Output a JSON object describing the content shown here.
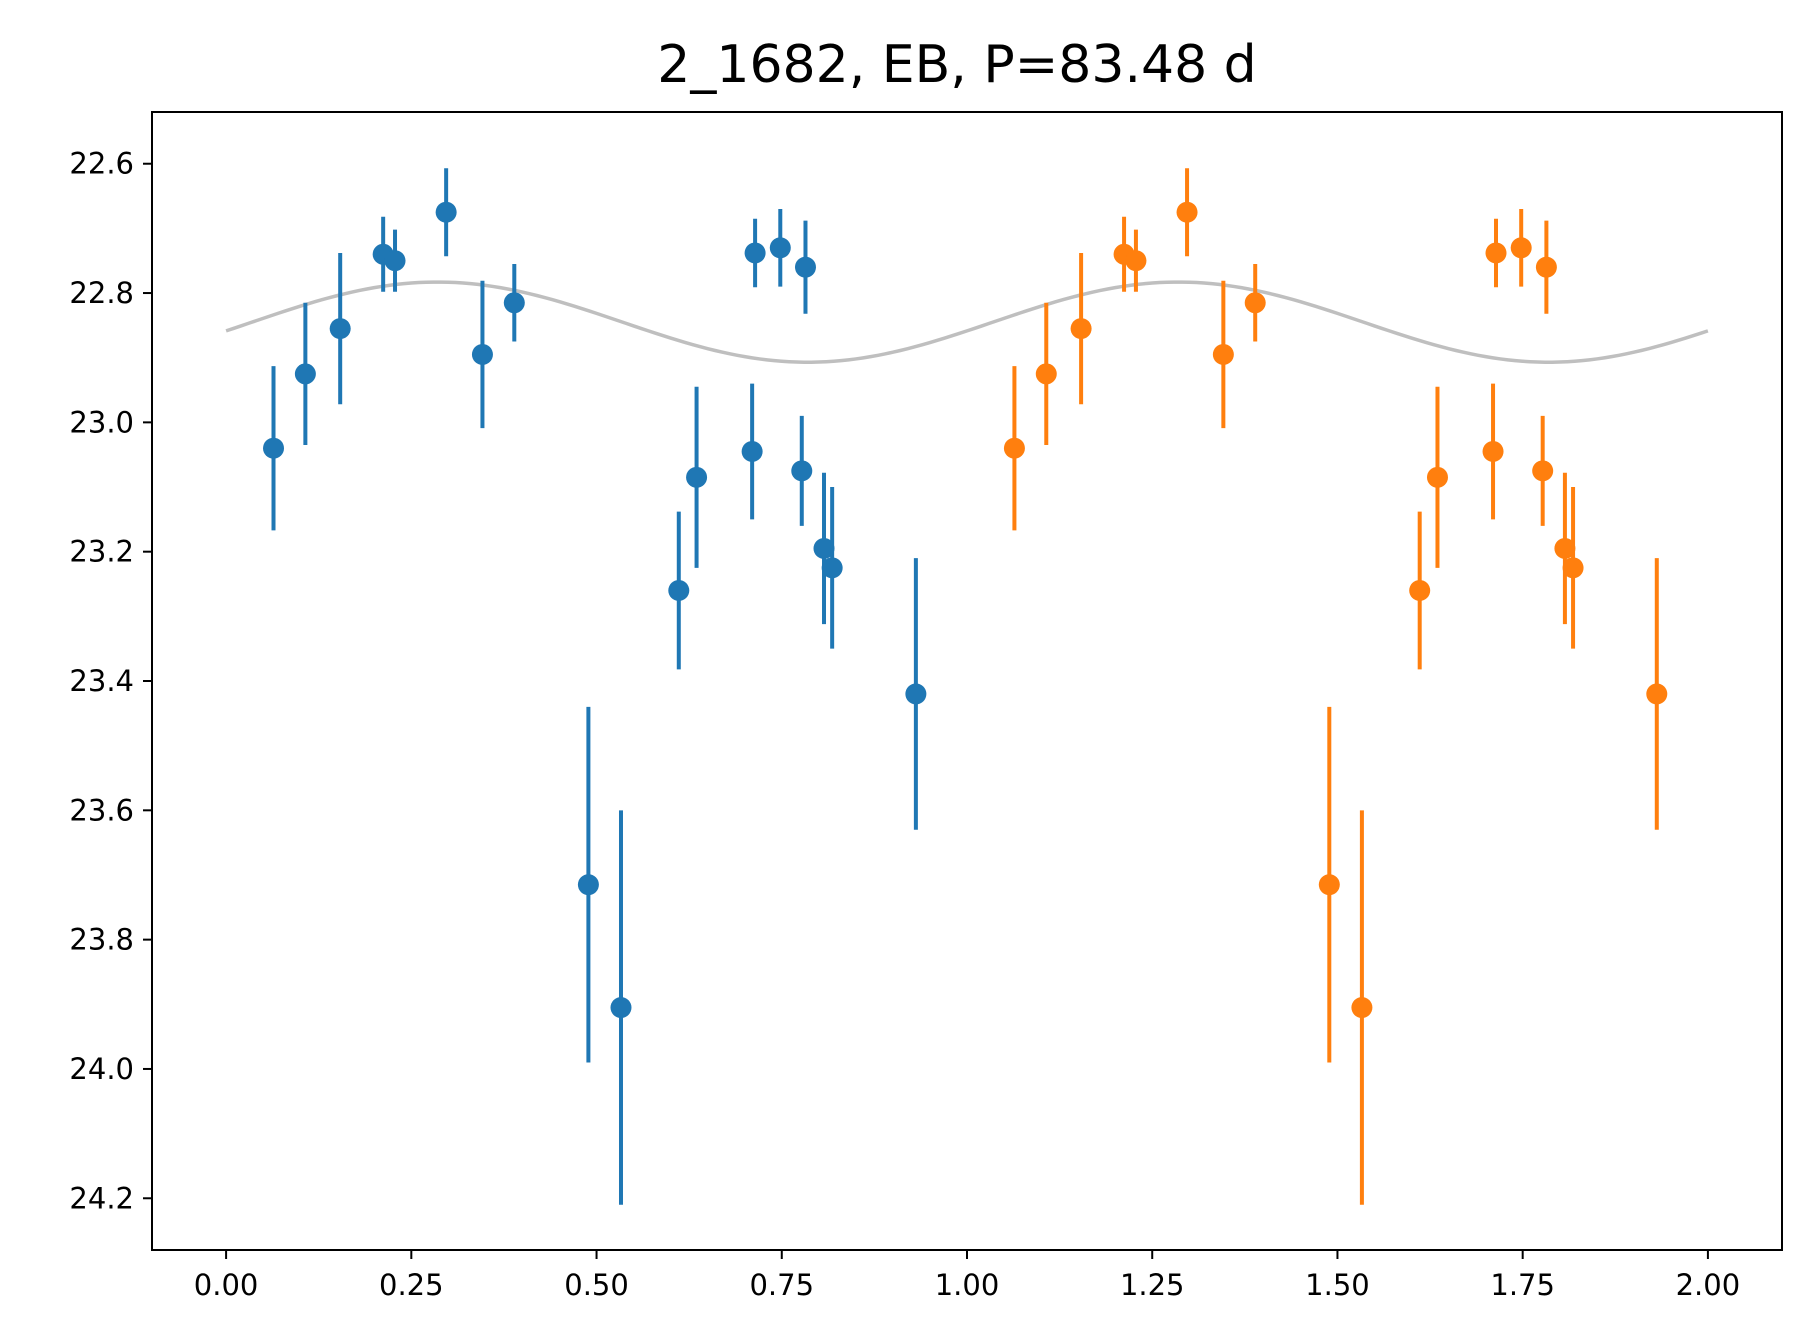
{
  "chart_data": {
    "type": "scatter",
    "title": "2_1682, EB, P=83.48 d",
    "xlabel": "",
    "ylabel": "",
    "xlim": [
      -0.1,
      2.1
    ],
    "ylim": [
      24.28,
      22.52
    ],
    "y_inverted": true,
    "grid": false,
    "xticks": [
      0.0,
      0.25,
      0.5,
      0.75,
      1.0,
      1.25,
      1.5,
      1.75,
      2.0
    ],
    "xtick_labels": [
      "0.00",
      "0.25",
      "0.50",
      "0.75",
      "1.00",
      "1.25",
      "1.50",
      "1.75",
      "2.00"
    ],
    "yticks": [
      22.6,
      22.8,
      23.0,
      23.2,
      23.4,
      23.6,
      23.8,
      24.0,
      24.2
    ],
    "ytick_labels": [
      "22.6",
      "22.8",
      "23.0",
      "23.2",
      "23.4",
      "23.6",
      "23.8",
      "24.0",
      "24.2"
    ],
    "phase_offset": 1.0,
    "colors": {
      "first_cycle": "#1f77b4",
      "second_cycle": "#ff7f0e",
      "model": "#bfbfbf"
    },
    "points": [
      {
        "x": 0.064,
        "y": 23.04,
        "err": 0.127
      },
      {
        "x": 0.107,
        "y": 22.925,
        "err": 0.11
      },
      {
        "x": 0.154,
        "y": 22.855,
        "err": 0.117
      },
      {
        "x": 0.212,
        "y": 22.74,
        "err": 0.058
      },
      {
        "x": 0.228,
        "y": 22.75,
        "err": 0.048
      },
      {
        "x": 0.297,
        "y": 22.675,
        "err": 0.068
      },
      {
        "x": 0.346,
        "y": 22.895,
        "err": 0.114
      },
      {
        "x": 0.389,
        "y": 22.815,
        "err": 0.06
      },
      {
        "x": 0.489,
        "y": 23.715,
        "err": 0.275
      },
      {
        "x": 0.533,
        "y": 23.905,
        "err": 0.305
      },
      {
        "x": 0.611,
        "y": 23.26,
        "err": 0.122
      },
      {
        "x": 0.635,
        "y": 23.085,
        "err": 0.14
      },
      {
        "x": 0.71,
        "y": 23.045,
        "err": 0.105
      },
      {
        "x": 0.714,
        "y": 22.738,
        "err": 0.053
      },
      {
        "x": 0.748,
        "y": 22.73,
        "err": 0.06
      },
      {
        "x": 0.777,
        "y": 23.075,
        "err": 0.085
      },
      {
        "x": 0.782,
        "y": 22.76,
        "err": 0.072
      },
      {
        "x": 0.807,
        "y": 23.195,
        "err": 0.117
      },
      {
        "x": 0.818,
        "y": 23.225,
        "err": 0.125
      },
      {
        "x": 0.931,
        "y": 23.42,
        "err": 0.21
      }
    ],
    "model_curve": {
      "shape": "sinusoid",
      "x_range": [
        0.0,
        2.0
      ],
      "period": 1.0,
      "mean": 22.845,
      "amplitude": 0.062,
      "max_brightness_phase": 0.285
    }
  }
}
